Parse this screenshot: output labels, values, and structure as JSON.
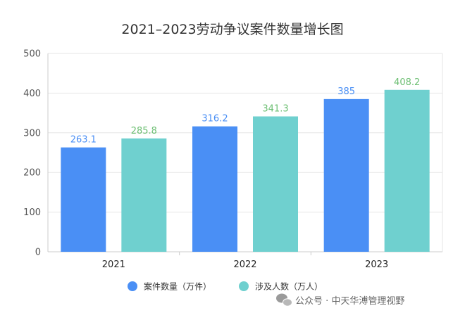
{
  "chart_data": {
    "type": "bar",
    "title": "2021–2023劳动争议案件数量增长图",
    "categories": [
      "2021",
      "2022",
      "2023"
    ],
    "series": [
      {
        "name": "案件数量（万件）",
        "values": [
          263.1,
          316.2,
          385
        ],
        "labels": [
          "263.1",
          "316.2",
          "385"
        ],
        "color": "#4a8ff5",
        "label_color": "#4a8ff5"
      },
      {
        "name": "涉及人数（万人）",
        "values": [
          285.8,
          341.3,
          408.2
        ],
        "labels": [
          "285.8",
          "341.3",
          "408.2"
        ],
        "color": "#6fd0cf",
        "label_color": "#6dbf73"
      }
    ],
    "yticks": [
      "0",
      "100",
      "200",
      "300",
      "400",
      "500"
    ],
    "ylim": [
      0,
      500
    ],
    "grid": true,
    "legend_position": "bottom"
  },
  "watermark": {
    "text": "公众号 · 中天华溥管理视野",
    "icon": "wechat-icon"
  },
  "colors": {
    "axis": "#cccccc",
    "grid": "#e6e6e6",
    "text": "#333333"
  }
}
